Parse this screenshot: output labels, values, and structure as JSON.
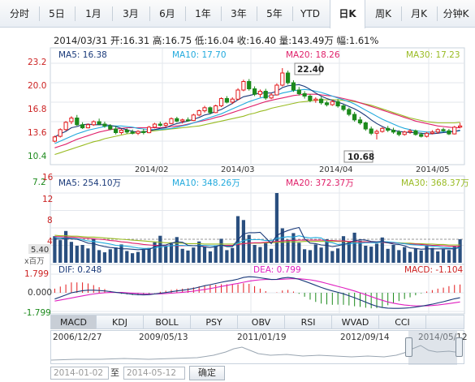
{
  "tabs": [
    {
      "label": "分时",
      "selected": false
    },
    {
      "label": "5日",
      "selected": false
    },
    {
      "label": "1月",
      "selected": false
    },
    {
      "label": "3月",
      "selected": false
    },
    {
      "label": "6月",
      "selected": false
    },
    {
      "label": "1年",
      "selected": false
    },
    {
      "label": "3年",
      "selected": false
    },
    {
      "label": "5年",
      "selected": false
    },
    {
      "label": "YTD",
      "selected": false
    },
    {
      "label": "日K",
      "selected": true
    },
    {
      "label": "周K",
      "selected": false
    },
    {
      "label": "月K",
      "selected": false
    },
    {
      "label": "分钟K",
      "selected": false
    }
  ],
  "info": {
    "text": "2014/03/31 开:16.31 高:16.75 低:16.04 收:16.40 量:143.49万 幅:1.61%"
  },
  "price_panel": {
    "ma_legend": [
      {
        "label": "MA5: 16.38",
        "color": "#1a3a7a"
      },
      {
        "label": "MA10: 17.70",
        "color": "#22aadd"
      },
      {
        "label": "MA20: 18.26",
        "color": "#e0206a"
      },
      {
        "label": "MA30: 17.23",
        "color": "#99bb22"
      }
    ],
    "y_ticks": [
      "23.2",
      "20.0",
      "16.8",
      "13.6",
      "10.4",
      "7.2"
    ],
    "x_ticks": [
      "2014/02",
      "2014/03",
      "2014/04",
      "2014/05"
    ],
    "high_marker": "22.40",
    "low_marker": "10.68"
  },
  "volume_panel": {
    "ma_legend": [
      {
        "label": "MA5: 254.10万",
        "color": "#1a3a7a"
      },
      {
        "label": "MA10: 348.26万",
        "color": "#22aadd"
      },
      {
        "label": "MA20: 372.37万",
        "color": "#e0206a"
      },
      {
        "label": "MA30: 368.37万",
        "color": "#99bb22"
      }
    ],
    "y_ticks": [
      "16",
      "12",
      "8",
      "4"
    ],
    "current_value": "5.40",
    "unit": "x百万"
  },
  "macd_panel": {
    "legend": [
      {
        "label": "DIF: 0.248",
        "color": "#1a3a7a"
      },
      {
        "label": "DEA: 0.799",
        "color": "#e020c0"
      },
      {
        "label": "MACD: -1.104",
        "color": "#cc2222"
      }
    ],
    "y_ticks": [
      "1.799",
      "0.000",
      "-1.799"
    ]
  },
  "indicator_tabs": [
    {
      "label": "MACD",
      "selected": true
    },
    {
      "label": "KDJ",
      "selected": false
    },
    {
      "label": "BOLL",
      "selected": false
    },
    {
      "label": "PSY",
      "selected": false
    },
    {
      "label": "OBV",
      "selected": false
    },
    {
      "label": "RSI",
      "selected": false
    },
    {
      "label": "WVAD",
      "selected": false
    },
    {
      "label": "CCI",
      "selected": false
    }
  ],
  "timeline": {
    "labels": [
      "2006/12/27",
      "2009/05/13",
      "2011/01/19",
      "2012/09/14",
      "2014/05/12"
    ]
  },
  "date_range": {
    "from": "2014-01-02",
    "to_label": "至",
    "to": "2014-05-12",
    "confirm": "确定"
  },
  "colors": {
    "up": "#e31a1c",
    "down": "#1c8a1c",
    "ma5": "#1a3a7a",
    "ma10": "#22aadd",
    "ma20": "#e0206a",
    "ma30": "#99bb22",
    "volume": "#2a4f7f"
  },
  "chart_data": {
    "type": "candlestick",
    "price_axis": {
      "min": 7.2,
      "max": 23.2
    },
    "candles": [
      {
        "o": 10.4,
        "h": 11.3,
        "l": 10.2,
        "c": 11.1
      },
      {
        "o": 11.2,
        "h": 12.5,
        "l": 11.0,
        "c": 12.3
      },
      {
        "o": 12.3,
        "h": 13.7,
        "l": 12.1,
        "c": 13.5
      },
      {
        "o": 13.6,
        "h": 14.5,
        "l": 13.2,
        "c": 14.2
      },
      {
        "o": 14.2,
        "h": 14.7,
        "l": 12.9,
        "c": 13.1
      },
      {
        "o": 13.1,
        "h": 13.5,
        "l": 12.4,
        "c": 12.6
      },
      {
        "o": 12.6,
        "h": 13.3,
        "l": 12.5,
        "c": 13.1
      },
      {
        "o": 13.1,
        "h": 13.8,
        "l": 12.9,
        "c": 13.6
      },
      {
        "o": 13.6,
        "h": 14.1,
        "l": 13.0,
        "c": 13.2
      },
      {
        "o": 13.2,
        "h": 13.6,
        "l": 12.6,
        "c": 12.9
      },
      {
        "o": 12.9,
        "h": 13.2,
        "l": 12.2,
        "c": 12.4
      },
      {
        "o": 12.4,
        "h": 12.9,
        "l": 11.5,
        "c": 11.8
      },
      {
        "o": 11.8,
        "h": 12.4,
        "l": 11.5,
        "c": 12.2
      },
      {
        "o": 12.2,
        "h": 12.5,
        "l": 11.6,
        "c": 11.9
      },
      {
        "o": 11.9,
        "h": 12.3,
        "l": 11.5,
        "c": 11.7
      },
      {
        "o": 11.7,
        "h": 12.2,
        "l": 11.4,
        "c": 12.0
      },
      {
        "o": 12.0,
        "h": 12.4,
        "l": 11.5,
        "c": 11.8
      },
      {
        "o": 11.8,
        "h": 12.9,
        "l": 11.7,
        "c": 12.7
      },
      {
        "o": 12.7,
        "h": 13.4,
        "l": 12.5,
        "c": 13.2
      },
      {
        "o": 13.2,
        "h": 13.6,
        "l": 12.8,
        "c": 13.0
      },
      {
        "o": 13.0,
        "h": 13.5,
        "l": 12.7,
        "c": 13.3
      },
      {
        "o": 13.3,
        "h": 14.3,
        "l": 13.2,
        "c": 14.1
      },
      {
        "o": 14.1,
        "h": 14.4,
        "l": 13.5,
        "c": 13.7
      },
      {
        "o": 13.7,
        "h": 14.1,
        "l": 13.3,
        "c": 13.9
      },
      {
        "o": 13.9,
        "h": 14.3,
        "l": 13.6,
        "c": 13.8
      },
      {
        "o": 13.8,
        "h": 14.9,
        "l": 13.7,
        "c": 14.7
      },
      {
        "o": 14.7,
        "h": 15.6,
        "l": 14.5,
        "c": 15.4
      },
      {
        "o": 15.4,
        "h": 16.2,
        "l": 15.1,
        "c": 15.9
      },
      {
        "o": 15.9,
        "h": 16.1,
        "l": 14.8,
        "c": 15.1
      },
      {
        "o": 15.1,
        "h": 16.4,
        "l": 15.0,
        "c": 16.2
      },
      {
        "o": 16.2,
        "h": 17.6,
        "l": 16.0,
        "c": 17.4
      },
      {
        "o": 17.4,
        "h": 17.8,
        "l": 16.6,
        "c": 16.8
      },
      {
        "o": 16.8,
        "h": 17.6,
        "l": 16.5,
        "c": 17.3
      },
      {
        "o": 17.3,
        "h": 19.1,
        "l": 17.1,
        "c": 18.8
      },
      {
        "o": 18.8,
        "h": 20.5,
        "l": 18.6,
        "c": 20.2
      },
      {
        "o": 20.2,
        "h": 20.6,
        "l": 18.7,
        "c": 19.0
      },
      {
        "o": 19.0,
        "h": 19.4,
        "l": 17.8,
        "c": 18.1
      },
      {
        "o": 18.1,
        "h": 18.9,
        "l": 17.6,
        "c": 18.6
      },
      {
        "o": 18.6,
        "h": 19.0,
        "l": 17.2,
        "c": 17.5
      },
      {
        "o": 17.5,
        "h": 18.3,
        "l": 17.3,
        "c": 18.0
      },
      {
        "o": 18.0,
        "h": 19.9,
        "l": 17.9,
        "c": 19.6
      },
      {
        "o": 19.6,
        "h": 22.4,
        "l": 19.4,
        "c": 21.6
      },
      {
        "o": 21.6,
        "h": 22.0,
        "l": 19.7,
        "c": 20.0
      },
      {
        "o": 20.0,
        "h": 20.4,
        "l": 18.5,
        "c": 18.8
      },
      {
        "o": 18.8,
        "h": 19.3,
        "l": 17.9,
        "c": 18.2
      },
      {
        "o": 18.2,
        "h": 18.6,
        "l": 17.4,
        "c": 17.8
      },
      {
        "o": 17.8,
        "h": 18.1,
        "l": 16.8,
        "c": 17.1
      },
      {
        "o": 17.1,
        "h": 17.6,
        "l": 16.7,
        "c": 17.3
      },
      {
        "o": 17.3,
        "h": 17.7,
        "l": 16.4,
        "c": 16.7
      },
      {
        "o": 16.7,
        "h": 17.0,
        "l": 16.1,
        "c": 16.4
      },
      {
        "o": 16.4,
        "h": 17.2,
        "l": 16.2,
        "c": 16.9
      },
      {
        "o": 16.9,
        "h": 17.3,
        "l": 15.9,
        "c": 16.2
      },
      {
        "o": 16.2,
        "h": 16.5,
        "l": 15.3,
        "c": 15.6
      },
      {
        "o": 15.6,
        "h": 15.9,
        "l": 14.5,
        "c": 14.8
      },
      {
        "o": 14.8,
        "h": 15.2,
        "l": 13.6,
        "c": 13.9
      },
      {
        "o": 13.9,
        "h": 14.4,
        "l": 13.1,
        "c": 13.4
      },
      {
        "o": 13.4,
        "h": 13.6,
        "l": 12.1,
        "c": 12.4
      },
      {
        "o": 12.4,
        "h": 12.8,
        "l": 11.4,
        "c": 11.7
      },
      {
        "o": 11.7,
        "h": 12.3,
        "l": 10.68,
        "c": 12.0
      },
      {
        "o": 12.0,
        "h": 12.7,
        "l": 11.8,
        "c": 12.5
      },
      {
        "o": 12.5,
        "h": 12.9,
        "l": 11.9,
        "c": 12.2
      },
      {
        "o": 12.2,
        "h": 12.6,
        "l": 11.6,
        "c": 11.9
      },
      {
        "o": 11.9,
        "h": 12.2,
        "l": 11.2,
        "c": 11.5
      },
      {
        "o": 11.5,
        "h": 12.1,
        "l": 11.3,
        "c": 11.9
      },
      {
        "o": 11.9,
        "h": 12.4,
        "l": 11.6,
        "c": 12.1
      },
      {
        "o": 12.1,
        "h": 12.3,
        "l": 11.3,
        "c": 11.5
      },
      {
        "o": 11.5,
        "h": 11.8,
        "l": 11.0,
        "c": 11.2
      },
      {
        "o": 11.2,
        "h": 11.9,
        "l": 11.0,
        "c": 11.7
      },
      {
        "o": 11.7,
        "h": 12.2,
        "l": 11.5,
        "c": 11.9
      },
      {
        "o": 11.9,
        "h": 12.5,
        "l": 11.6,
        "c": 12.3
      },
      {
        "o": 12.3,
        "h": 12.6,
        "l": 11.9,
        "c": 12.1
      },
      {
        "o": 12.1,
        "h": 12.4,
        "l": 11.4,
        "c": 11.6
      },
      {
        "o": 11.6,
        "h": 12.9,
        "l": 11.5,
        "c": 12.7
      },
      {
        "o": 12.7,
        "h": 13.4,
        "l": 12.5,
        "c": 12.9
      }
    ],
    "ma5": [
      11.1,
      11.6,
      12.0,
      12.6,
      12.8,
      13.1,
      13.2,
      13.1,
      13.1,
      13.1,
      13.0,
      12.8,
      12.5,
      12.3,
      12.0,
      11.9,
      11.9,
      12.1,
      12.3,
      12.5,
      12.6,
      13.0,
      13.3,
      13.5,
      13.7,
      14.0,
      14.3,
      14.7,
      14.9,
      15.3,
      15.6,
      16.1,
      16.6,
      17.2,
      17.7,
      17.9,
      18.1,
      18.3,
      18.3,
      18.3,
      18.6,
      19.2,
      19.5,
      19.6,
      19.7,
      19.4,
      18.9,
      18.3,
      17.8,
      17.4,
      17.1,
      16.8,
      16.5,
      16.1,
      15.7,
      15.2,
      14.6,
      13.9,
      13.3,
      12.8,
      12.4,
      12.2,
      12.0,
      11.9,
      11.8,
      11.8,
      11.7,
      11.6,
      11.6,
      11.7,
      11.8,
      11.9,
      12.0,
      12.2
    ],
    "ma10": [
      10.0,
      10.4,
      10.8,
      11.2,
      11.6,
      11.9,
      12.2,
      12.4,
      12.6,
      12.8,
      12.9,
      12.9,
      12.9,
      12.8,
      12.7,
      12.5,
      12.4,
      12.3,
      12.3,
      12.3,
      12.4,
      12.5,
      12.7,
      12.9,
      13.1,
      13.4,
      13.7,
      14.0,
      14.3,
      14.6,
      14.9,
      15.3,
      15.7,
      16.1,
      16.5,
      16.9,
      17.2,
      17.5,
      17.7,
      17.9,
      18.0,
      18.3,
      18.5,
      18.7,
      18.8,
      18.9,
      18.8,
      18.6,
      18.4,
      18.1,
      17.8,
      17.5,
      17.2,
      16.9,
      16.5,
      16.0,
      15.5,
      15.0,
      14.5,
      14.0,
      13.6,
      13.2,
      12.8,
      12.5,
      12.3,
      12.1,
      12.0,
      11.9,
      11.9,
      11.9,
      11.9,
      12.0,
      12.0,
      12.1
    ],
    "ma20": [
      9.3,
      9.6,
      9.9,
      10.3,
      10.7,
      11.0,
      11.3,
      11.6,
      11.9,
      12.1,
      12.3,
      12.4,
      12.5,
      12.6,
      12.6,
      12.6,
      12.6,
      12.6,
      12.6,
      12.6,
      12.7,
      12.8,
      12.9,
      13.0,
      13.2,
      13.4,
      13.6,
      13.8,
      14.0,
      14.3,
      14.5,
      14.8,
      15.1,
      15.4,
      15.7,
      16.0,
      16.3,
      16.6,
      16.9,
      17.1,
      17.3,
      17.5,
      17.7,
      17.9,
      18.0,
      18.1,
      18.1,
      18.1,
      18.0,
      17.9,
      17.8,
      17.6,
      17.4,
      17.2,
      17.0,
      16.7,
      16.4,
      16.1,
      15.8,
      15.5,
      15.2,
      14.9,
      14.6,
      14.3,
      14.0,
      13.7,
      13.5,
      13.3,
      13.1,
      12.9,
      12.8,
      12.7,
      12.6,
      12.6
    ],
    "ma30": [
      8.2,
      8.5,
      8.8,
      9.1,
      9.4,
      9.7,
      10.0,
      10.3,
      10.5,
      10.8,
      11.0,
      11.2,
      11.4,
      11.6,
      11.7,
      11.8,
      11.9,
      12.0,
      12.1,
      12.2,
      12.3,
      12.4,
      12.5,
      12.6,
      12.7,
      12.8,
      12.9,
      13.1,
      13.3,
      13.5,
      13.7,
      13.9,
      14.1,
      14.3,
      14.5,
      14.8,
      15.0,
      15.3,
      15.5,
      15.8,
      16.0,
      16.2,
      16.4,
      16.6,
      16.8,
      16.9,
      17.0,
      17.1,
      17.2,
      17.2,
      17.2,
      17.2,
      17.1,
      17.0,
      16.9,
      16.7,
      16.5,
      16.3,
      16.0,
      15.7,
      15.4,
      15.1,
      14.8,
      14.5,
      14.2,
      14.0,
      13.8,
      13.6,
      13.5,
      13.4,
      13.4,
      13.4,
      13.4,
      13.5
    ],
    "volume": [
      6.1,
      5.2,
      7.3,
      4.8,
      3.9,
      4.1,
      3.3,
      5.6,
      2.9,
      2.4,
      3.1,
      3.5,
      4.2,
      2.7,
      2.2,
      2.5,
      3.0,
      3.4,
      4.7,
      6.2,
      3.8,
      4.4,
      5.9,
      3.2,
      2.8,
      3.5,
      4.9,
      3.6,
      2.6,
      3.9,
      5.5,
      2.9,
      3.4,
      10.7,
      9.8,
      6.4,
      4.1,
      3.6,
      4.5,
      3.2,
      16.0,
      7.9,
      5.3,
      6.8,
      4.6,
      3.1,
      2.9,
      4.2,
      3.5,
      5.4,
      2.7,
      3.3,
      6.1,
      4.8,
      6.9,
      5.1,
      3.9,
      3.7,
      4.4,
      5.8,
      3.2,
      4.1,
      2.9,
      3.6,
      2.5,
      3.3,
      2.8,
      4.0,
      3.4,
      2.6,
      3.1,
      2.9,
      3.7,
      5.4
    ],
    "volume_ma5": [
      5.5,
      5.4,
      5.6,
      5.5,
      5.4,
      5.0,
      4.5,
      4.4,
      4.0,
      3.7,
      3.5,
      3.4,
      3.2,
      3.2,
      3.1,
      3.0,
      3.1,
      3.1,
      3.6,
      4.0,
      4.1,
      4.5,
      4.8,
      4.7,
      4.0,
      3.9,
      3.9,
      3.6,
      3.5,
      3.7,
      4.1,
      3.7,
      3.7,
      5.3,
      6.6,
      6.9,
      6.9,
      7.0,
      5.7,
      4.4,
      6.3,
      6.9,
      7.4,
      7.8,
      8.1,
      5.5,
      4.5,
      4.4,
      4.1,
      4.0,
      3.7,
      3.9,
      4.2,
      4.5,
      5.0,
      5.3,
      5.2,
      4.9,
      4.8,
      4.9,
      4.6,
      4.3,
      4.2,
      3.9,
      3.4,
      3.3,
      3.1,
      3.2,
      3.2,
      3.2,
      3.2,
      3.2,
      3.2,
      3.7
    ],
    "volume_ma10": [
      5.8,
      5.7,
      5.7,
      5.6,
      5.5,
      5.3,
      5.0,
      4.9,
      4.7,
      4.5,
      4.3,
      4.0,
      3.9,
      3.8,
      3.6,
      3.4,
      3.3,
      3.3,
      3.4,
      3.6,
      3.8,
      3.9,
      4.0,
      4.0,
      3.9,
      3.9,
      4.0,
      4.0,
      3.9,
      3.9,
      4.0,
      3.8,
      3.8,
      4.5,
      5.1,
      5.3,
      5.3,
      5.3,
      5.1,
      5.1,
      5.6,
      5.8,
      6.0,
      5.9,
      6.2,
      5.9,
      5.7,
      5.8,
      5.7,
      4.8,
      4.6,
      4.2,
      4.3,
      4.3,
      4.5,
      4.5,
      4.6,
      4.6,
      4.6,
      4.8,
      4.8,
      4.7,
      4.5,
      4.4,
      4.2,
      4.1,
      4.0,
      3.9,
      3.8,
      3.7,
      3.5,
      3.4,
      3.3,
      3.4
    ],
    "volume_ma20": [
      6.0,
      6.0,
      5.9,
      5.9,
      5.8,
      5.7,
      5.6,
      5.5,
      5.4,
      5.3,
      5.1,
      5.0,
      4.8,
      4.7,
      4.5,
      4.4,
      4.2,
      4.1,
      4.0,
      4.0,
      3.9,
      3.9,
      3.9,
      3.9,
      3.9,
      3.9,
      3.9,
      3.9,
      3.9,
      3.9,
      4.0,
      4.0,
      4.0,
      4.2,
      4.4,
      4.5,
      4.6,
      4.6,
      4.7,
      4.8,
      4.9,
      5.0,
      5.1,
      5.1,
      5.2,
      5.2,
      5.2,
      5.2,
      5.2,
      5.1,
      5.1,
      5.0,
      5.0,
      4.9,
      4.9,
      4.8,
      4.8,
      4.7,
      4.7,
      4.7,
      4.6,
      4.6,
      4.5,
      4.4,
      4.3,
      4.3,
      4.2,
      4.1,
      4.0,
      4.0,
      3.9,
      3.8,
      3.8,
      3.8
    ],
    "volume_ma30": [
      6.3,
      6.2,
      6.2,
      6.1,
      6.1,
      6.0,
      5.9,
      5.9,
      5.8,
      5.7,
      5.6,
      5.5,
      5.4,
      5.3,
      5.2,
      5.1,
      5.0,
      4.9,
      4.8,
      4.7,
      4.6,
      4.6,
      4.5,
      4.5,
      4.4,
      4.4,
      4.4,
      4.3,
      4.3,
      4.3,
      4.3,
      4.3,
      4.3,
      4.4,
      4.4,
      4.5,
      4.5,
      4.5,
      4.6,
      4.6,
      4.7,
      4.7,
      4.8,
      4.8,
      4.8,
      4.9,
      4.9,
      4.9,
      4.9,
      4.9,
      4.9,
      4.9,
      4.9,
      4.8,
      4.8,
      4.8,
      4.8,
      4.7,
      4.7,
      4.7,
      4.6,
      4.6,
      4.6,
      4.5,
      4.5,
      4.4,
      4.4,
      4.3,
      4.3,
      4.2,
      4.2,
      4.1,
      4.1,
      4.1
    ],
    "dif": [
      -0.6,
      -0.4,
      -0.2,
      0.0,
      0.1,
      0.2,
      0.25,
      0.25,
      0.22,
      0.18,
      0.12,
      0.05,
      -0.02,
      -0.08,
      -0.14,
      -0.18,
      -0.2,
      -0.18,
      -0.12,
      -0.05,
      0.02,
      0.1,
      0.18,
      0.25,
      0.32,
      0.42,
      0.55,
      0.68,
      0.78,
      0.9,
      1.02,
      1.12,
      1.2,
      1.32,
      1.48,
      1.55,
      1.52,
      1.45,
      1.36,
      1.28,
      1.3,
      1.42,
      1.48,
      1.42,
      1.3,
      1.12,
      0.92,
      0.72,
      0.52,
      0.34,
      0.18,
      0.05,
      -0.1,
      -0.28,
      -0.48,
      -0.68,
      -0.9,
      -1.12,
      -1.3,
      -1.42,
      -1.48,
      -1.5,
      -1.5,
      -1.48,
      -1.45,
      -1.38,
      -1.3,
      -1.2,
      -1.1,
      -0.98,
      -0.86,
      -0.72,
      -0.58,
      -0.48
    ],
    "dea": [
      -0.8,
      -0.7,
      -0.6,
      -0.5,
      -0.4,
      -0.3,
      -0.2,
      -0.12,
      -0.05,
      0.0,
      0.03,
      0.04,
      0.03,
      0.0,
      -0.03,
      -0.06,
      -0.09,
      -0.11,
      -0.11,
      -0.1,
      -0.08,
      -0.04,
      0.0,
      0.05,
      0.1,
      0.16,
      0.24,
      0.32,
      0.41,
      0.51,
      0.61,
      0.71,
      0.81,
      0.91,
      1.02,
      1.12,
      1.2,
      1.25,
      1.28,
      1.28,
      1.28,
      1.31,
      1.34,
      1.36,
      1.35,
      1.31,
      1.25,
      1.16,
      1.04,
      0.9,
      0.76,
      0.62,
      0.48,
      0.33,
      0.17,
      0.0,
      -0.18,
      -0.37,
      -0.56,
      -0.73,
      -0.88,
      -1.0,
      -1.1,
      -1.18,
      -1.23,
      -1.26,
      -1.27,
      -1.26,
      -1.23,
      -1.18,
      -1.11,
      -1.04,
      -0.96,
      -0.88
    ],
    "macd_axis": {
      "min": -1.799,
      "max": 1.799
    }
  }
}
